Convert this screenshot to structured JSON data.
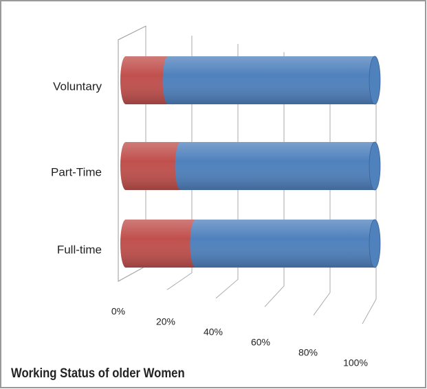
{
  "chart_data": {
    "type": "bar",
    "title": "Working Status of older Women",
    "categories": [
      "Voluntary",
      "Part-Time",
      "Full-time"
    ],
    "series": [
      {
        "color": "#c0504d",
        "values": [
          17,
          22,
          28
        ]
      },
      {
        "color": "#4f81bd",
        "values": [
          83,
          78,
          72
        ]
      }
    ],
    "stacked": true,
    "grid": true,
    "xlim": [
      0,
      100
    ],
    "xticks": [
      {
        "value": 0,
        "label": "0%"
      },
      {
        "value": 20,
        "label": "20%"
      },
      {
        "value": 40,
        "label": "40%"
      },
      {
        "value": 60,
        "label": "60%"
      },
      {
        "value": 80,
        "label": "80%"
      },
      {
        "value": 100,
        "label": "100%"
      }
    ]
  }
}
